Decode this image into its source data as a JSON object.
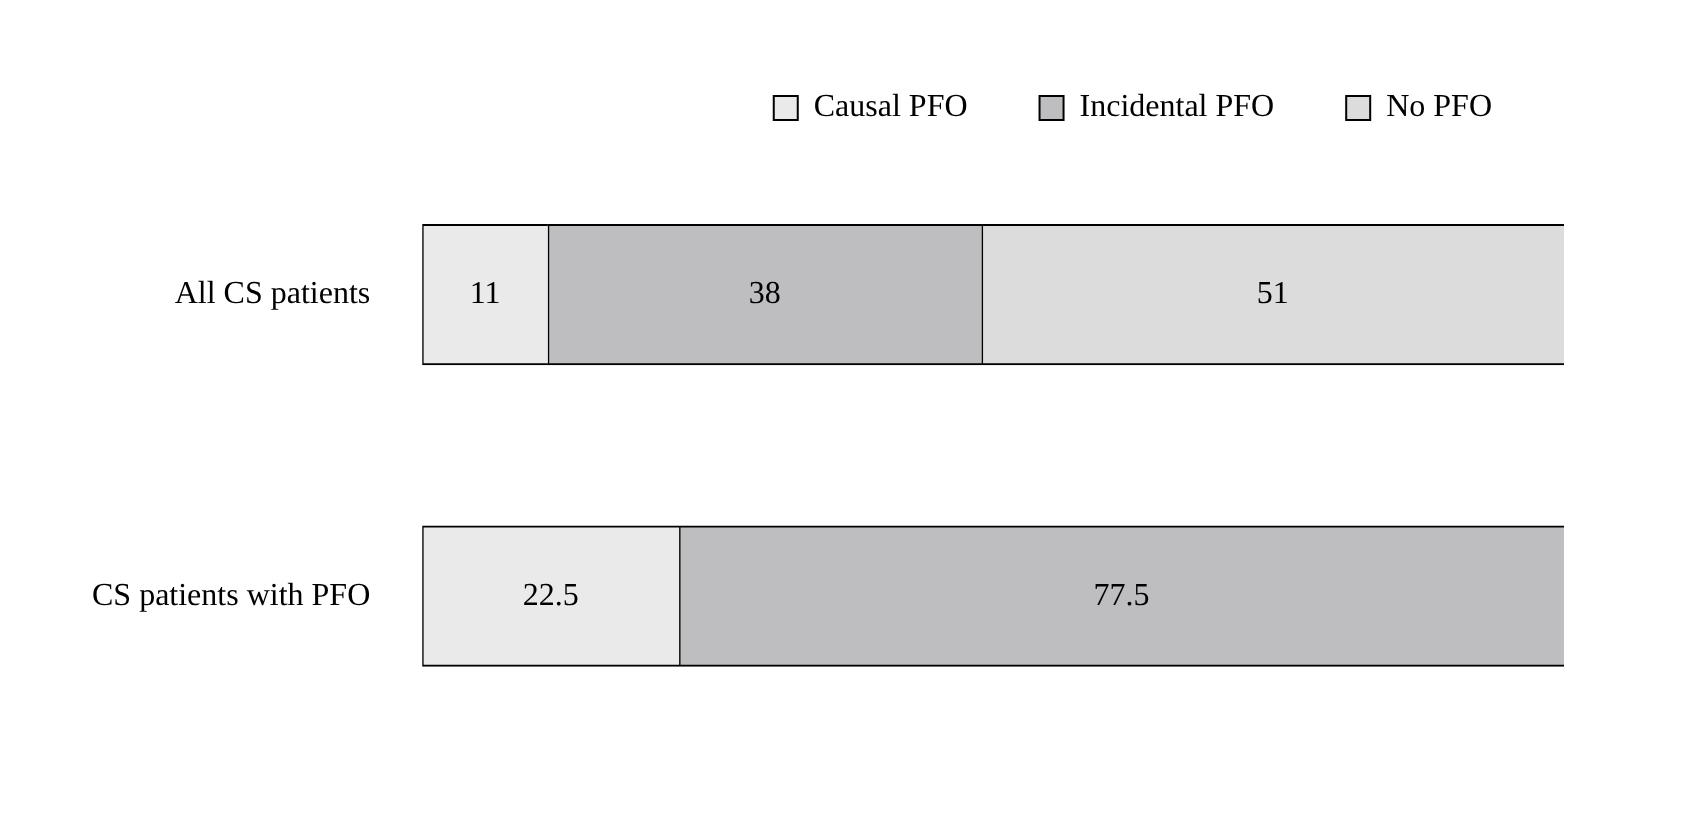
{
  "chart_data": {
    "type": "bar",
    "orientation": "horizontal",
    "stacked": true,
    "categories": [
      "All CS patients",
      "CS patients with PFO"
    ],
    "series": [
      {
        "name": "Causal PFO",
        "color": "#eaeaea",
        "values": [
          11,
          22.5
        ]
      },
      {
        "name": "Incidental PFO",
        "color": "#bebec0",
        "values": [
          38,
          77.5
        ]
      },
      {
        "name": "No PFO",
        "color": "#dcdcdc",
        "values": [
          51,
          null
        ]
      }
    ],
    "xlim": [
      0,
      100
    ],
    "data_labels": true,
    "legend": "top",
    "tick_labels": "y"
  }
}
